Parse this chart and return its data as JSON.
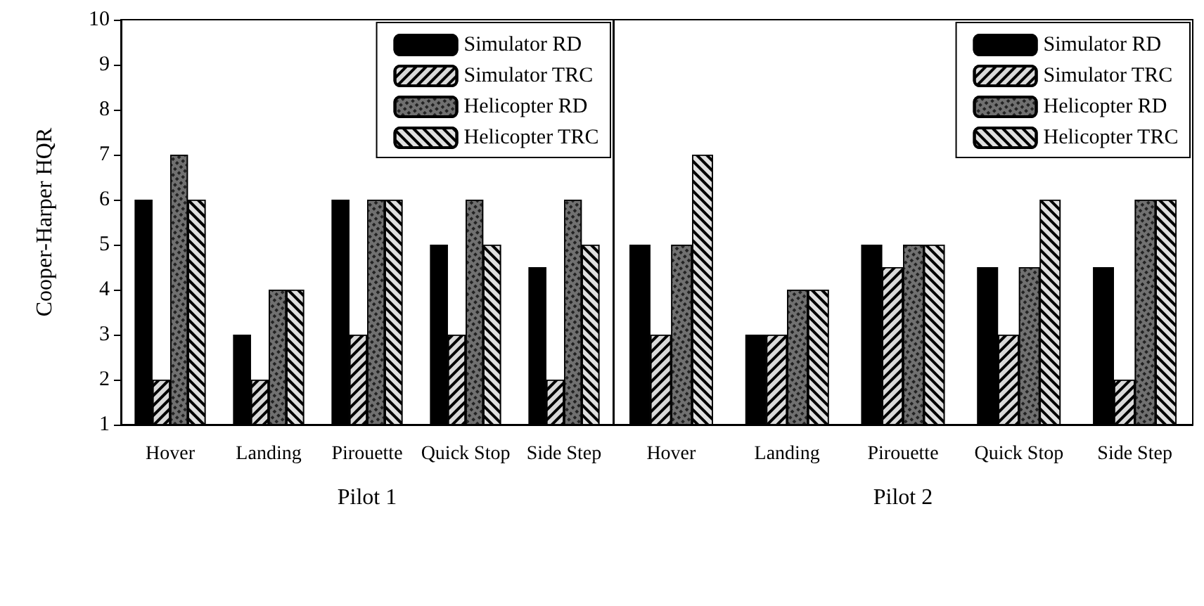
{
  "chart_data": [
    {
      "type": "bar",
      "xlabel": "Pilot 1",
      "ylabel": "Cooper-Harper HQR",
      "categories": [
        "Hover",
        "Landing",
        "Pirouette",
        "Quick Stop",
        "Side Step"
      ],
      "series": [
        {
          "name": "Simulator RD",
          "color": "#000000",
          "values": [
            6,
            3,
            6,
            5,
            4.5
          ]
        },
        {
          "name": "Simulator TRC",
          "color": "#d9d9d9",
          "values": [
            2,
            2,
            3,
            3,
            2
          ]
        },
        {
          "name": "Helicopter RD",
          "color": "#707070",
          "values": [
            7,
            4,
            6,
            6,
            6
          ]
        },
        {
          "name": "Helicopter TRC",
          "color": "#e0e0e0",
          "values": [
            6,
            4,
            6,
            5,
            5
          ]
        }
      ],
      "ylim": [
        1,
        10
      ],
      "yticks": [
        1,
        2,
        3,
        4,
        5,
        6,
        7,
        8,
        9,
        10
      ],
      "legend": "top right"
    },
    {
      "type": "bar",
      "xlabel": "Pilot 2",
      "categories": [
        "Hover",
        "Landing",
        "Pirouette",
        "Quick Stop",
        "Side Step"
      ],
      "series": [
        {
          "name": "Simulator RD",
          "color": "#000000",
          "values": [
            5,
            3,
            5,
            4.5,
            4.5
          ]
        },
        {
          "name": "Simulator TRC",
          "color": "#d9d9d9",
          "values": [
            3,
            3,
            4.5,
            3,
            2
          ]
        },
        {
          "name": "Helicopter RD",
          "color": "#707070",
          "values": [
            5,
            4,
            5,
            4.5,
            6
          ]
        },
        {
          "name": "Helicopter TRC",
          "color": "#e0e0e0",
          "values": [
            7,
            4,
            5,
            6,
            6
          ]
        }
      ],
      "ylim": [
        1,
        10
      ],
      "yticks": [
        1,
        2,
        3,
        4,
        5,
        6,
        7,
        8,
        9,
        10
      ],
      "legend": "top right",
      "tick_labels": "x"
    }
  ]
}
